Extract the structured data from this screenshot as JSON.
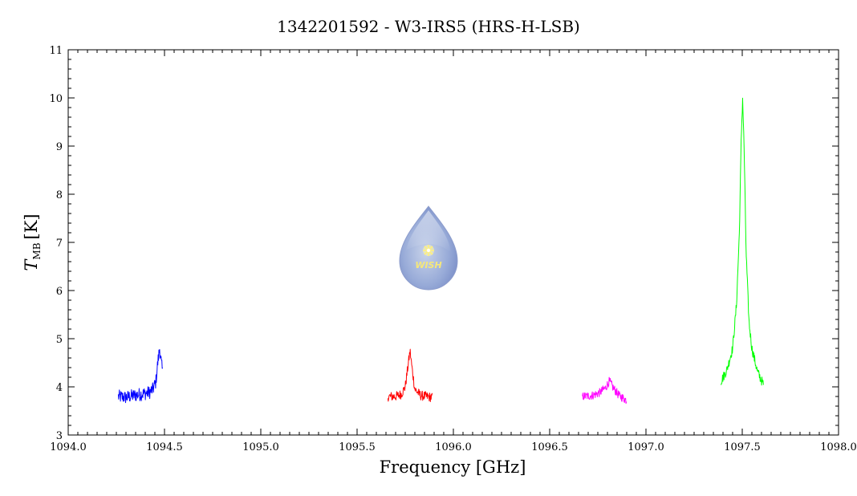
{
  "chart_data": {
    "type": "line",
    "title": "1342201592 - W3-IRS5 (HRS-H-LSB)",
    "xlabel": "Frequency [GHz]",
    "ylabel_main": "T",
    "ylabel_sub": "MB",
    "ylabel_unit": "[K]",
    "xlim": [
      1094.0,
      1098.0
    ],
    "ylim": [
      3,
      11
    ],
    "xticks": [
      1094.0,
      1094.5,
      1095.0,
      1095.5,
      1096.0,
      1096.5,
      1097.0,
      1097.5,
      1098.0
    ],
    "xtick_labels": [
      "1094.0",
      "1094.5",
      "1095.0",
      "1095.5",
      "1096.0",
      "1096.5",
      "1097.0",
      "1097.5",
      "1098.0"
    ],
    "yticks": [
      3,
      4,
      5,
      6,
      7,
      8,
      9,
      10,
      11
    ],
    "ytick_labels": [
      "3",
      "4",
      "5",
      "6",
      "7",
      "8",
      "9",
      "10",
      "11"
    ],
    "grid": false,
    "series": [
      {
        "color": "#0000ff",
        "x": [
          1094.26,
          1094.3,
          1094.34,
          1094.38,
          1094.42,
          1094.44,
          1094.455,
          1094.465,
          1094.475,
          1094.48,
          1094.49
        ],
        "y": [
          3.8,
          3.78,
          3.82,
          3.85,
          3.88,
          3.95,
          4.1,
          4.5,
          4.8,
          4.6,
          4.3
        ],
        "noise": 0.14
      },
      {
        "color": "#ff0000",
        "x": [
          1095.66,
          1095.7,
          1095.73,
          1095.75,
          1095.765,
          1095.775,
          1095.785,
          1095.8,
          1095.83,
          1095.86,
          1095.89
        ],
        "y": [
          3.8,
          3.8,
          3.85,
          4.0,
          4.45,
          4.75,
          4.4,
          3.95,
          3.82,
          3.8,
          3.78
        ],
        "noise": 0.1
      },
      {
        "color": "#ff00ff",
        "x": [
          1096.67,
          1096.72,
          1096.76,
          1096.79,
          1096.81,
          1096.83,
          1096.86,
          1096.9
        ],
        "y": [
          3.8,
          3.82,
          3.88,
          3.98,
          4.12,
          3.98,
          3.82,
          3.72
        ],
        "noise": 0.09
      },
      {
        "color": "#00ff00",
        "x": [
          1097.39,
          1097.42,
          1097.45,
          1097.47,
          1097.485,
          1097.495,
          1097.502,
          1097.51,
          1097.52,
          1097.535,
          1097.55,
          1097.58,
          1097.61
        ],
        "y": [
          4.12,
          4.35,
          4.8,
          5.7,
          7.2,
          9.2,
          10.0,
          8.9,
          6.8,
          5.35,
          4.8,
          4.3,
          4.05
        ],
        "noise": 0.1
      }
    ]
  },
  "logo": {
    "text": "WISH"
  }
}
